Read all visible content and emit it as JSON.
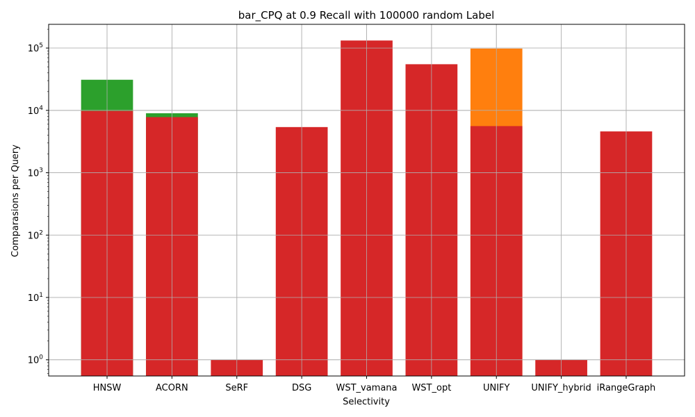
{
  "chart_data": {
    "type": "bar",
    "title": "bar_CPQ at 0.9 Recall with 100000 random Label",
    "xlabel": "Selectivity",
    "ylabel": "Comparasions per Query",
    "yscale": "log",
    "ylim": [
      0.55,
      240000
    ],
    "yticks": [
      {
        "value": 1,
        "base": "10",
        "exp": "0"
      },
      {
        "value": 10,
        "base": "10",
        "exp": "1"
      },
      {
        "value": 100,
        "base": "10",
        "exp": "2"
      },
      {
        "value": 1000,
        "base": "10",
        "exp": "3"
      },
      {
        "value": 10000,
        "base": "10",
        "exp": "4"
      },
      {
        "value": 100000,
        "base": "10",
        "exp": "5"
      }
    ],
    "grid": true,
    "categories": [
      "HNSW",
      "ACORN",
      "SeRF",
      "DSG",
      "WST_vamana",
      "WST_opt",
      "UNIFY",
      "UNIFY_hybrid",
      "iRangeGraph"
    ],
    "series": [
      {
        "color": "#ff7f0e",
        "values": [
          null,
          null,
          null,
          null,
          null,
          null,
          98000,
          null,
          null
        ]
      },
      {
        "color": "#2ca02c",
        "values": [
          31000,
          9000,
          null,
          null,
          null,
          null,
          null,
          null,
          null
        ]
      },
      {
        "color": "#d62728",
        "values": [
          9800,
          7800,
          1,
          5400,
          132000,
          55000,
          5600,
          1,
          4600
        ]
      }
    ]
  }
}
